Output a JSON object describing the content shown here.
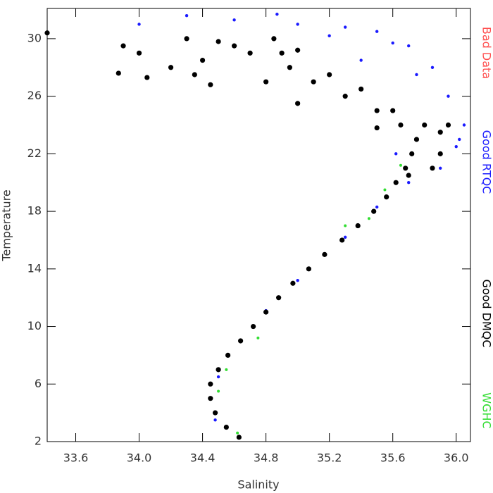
{
  "chart_data": {
    "type": "scatter",
    "x_label": "Salinity",
    "y_label": "Temperature",
    "xlim": [
      33.42,
      36.09
    ],
    "xticks": [
      33.6,
      {
        "value": 34.0,
        "label": "34.0"
      },
      34.4,
      34.8,
      35.2,
      35.6,
      {
        "value": 36.0,
        "label": "36.0"
      }
    ],
    "ylim": [
      2,
      32.1
    ],
    "yticks": [
      2,
      6,
      10,
      14,
      18,
      22,
      26,
      30
    ],
    "legend": "right",
    "series": [
      {
        "name": "Bad Data",
        "color": "#ff5050",
        "x": [],
        "values": []
      },
      {
        "name": "Good RTQC",
        "color": "#1a1aff",
        "x": [
          35.0,
          35.3,
          35.5,
          35.7,
          35.85,
          35.95,
          36.05,
          36.0,
          35.9,
          35.7,
          34.0,
          34.3,
          34.6,
          34.87,
          35.2,
          35.6,
          35.75,
          35.4,
          36.02,
          34.48,
          34.5,
          35.0,
          35.5,
          35.62,
          34.8,
          35.3
        ],
        "values": [
          31,
          30.8,
          30.5,
          29.5,
          28,
          26,
          24,
          22.5,
          21,
          20,
          31,
          31.6,
          31.3,
          31.7,
          30.2,
          29.7,
          27.5,
          28.5,
          23,
          3.5,
          6.5,
          13.2,
          18.3,
          22,
          11.1,
          16.2
        ]
      },
      {
        "name": "Good DMQC",
        "color": "#000000",
        "x": [
          34.63,
          34.55,
          34.48,
          34.45,
          34.45,
          34.5,
          34.56,
          34.64,
          34.72,
          34.8,
          34.88,
          34.97,
          35.07,
          35.17,
          35.28,
          35.38,
          35.48,
          35.56,
          35.62,
          35.68,
          35.72,
          35.75,
          35.65,
          35.5,
          35.3,
          35.1,
          34.95,
          34.9,
          34.85,
          34.6,
          34.4,
          34.2,
          34.0,
          33.9,
          33.42,
          33.87,
          34.05,
          34.45,
          35.0,
          35.8,
          35.9,
          35.85,
          35.7,
          34.7,
          35.2,
          35.4,
          35.6,
          35.9,
          35.95,
          34.3,
          34.5,
          35.0,
          34.35,
          34.8,
          35.5
        ],
        "values": [
          2.3,
          3,
          4,
          5,
          6,
          7,
          8,
          9,
          10,
          11,
          12,
          13,
          14,
          15,
          16,
          17,
          18,
          19,
          20,
          21,
          22,
          23,
          24,
          25,
          26,
          27,
          28,
          29,
          30,
          29.5,
          28.5,
          28,
          29,
          29.5,
          30.4,
          27.6,
          27.3,
          26.8,
          25.5,
          24,
          22,
          21,
          20.5,
          29,
          27.5,
          26.5,
          25,
          23.5,
          24,
          30,
          29.8,
          29.2,
          27.5,
          27,
          23.8
        ]
      },
      {
        "name": "WGHC",
        "color": "#33dd33",
        "x": [
          34.55,
          34.75,
          35.3,
          35.55,
          35.65,
          34.62,
          34.5,
          35.45
        ],
        "values": [
          7,
          9.2,
          17,
          19.5,
          21.2,
          2.6,
          5.5,
          17.5
        ]
      }
    ]
  }
}
